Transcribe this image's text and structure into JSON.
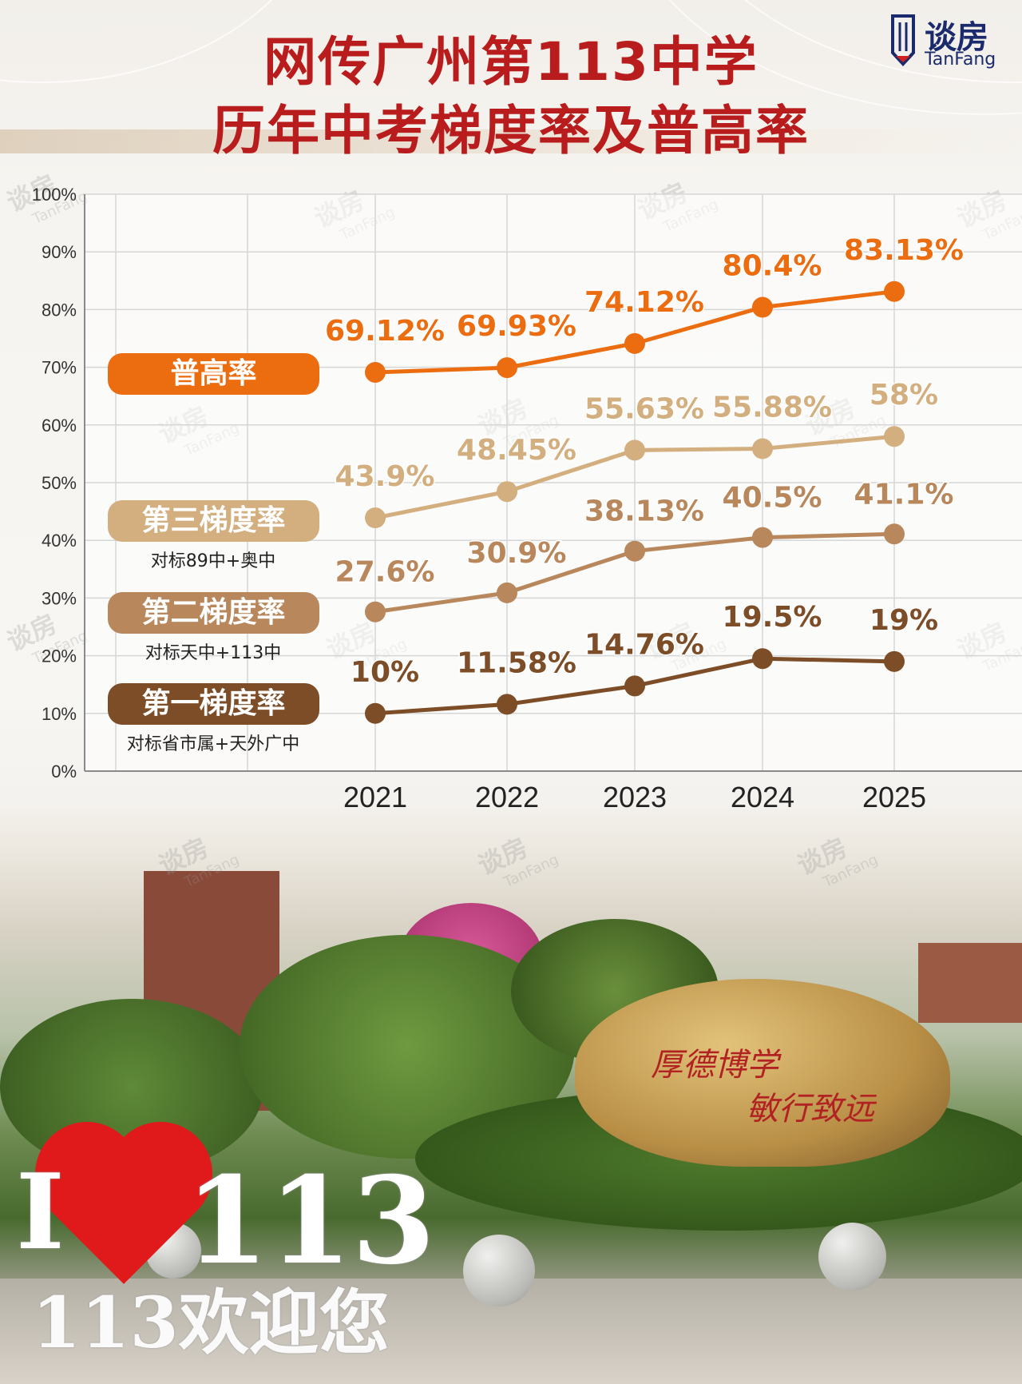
{
  "title": {
    "line1": "网传广州第113中学",
    "line2": "历年中考梯度率及普高率"
  },
  "logo": {
    "name_cn": "谈房",
    "name_en": "TanFang"
  },
  "watermark": {
    "cn": "谈房",
    "en": "TanFang"
  },
  "colors": {
    "title_red": "#b81c1c",
    "pugao": "#ec6c10",
    "tier3": "#d3ae7e",
    "tier2": "#b8875c",
    "tier1": "#7c4d26",
    "grid": "#d6d6d6"
  },
  "chart_data": {
    "type": "line",
    "categories": [
      "2021",
      "2022",
      "2023",
      "2024",
      "2025"
    ],
    "ylim": [
      0,
      100
    ],
    "y_ticks": [
      "0%",
      "10%",
      "20%",
      "30%",
      "40%",
      "50%",
      "60%",
      "70%",
      "80%",
      "90%",
      "100%"
    ],
    "grid": true,
    "series": [
      {
        "name": "普高率",
        "subtitle": "",
        "color": "#ec6c10",
        "values": [
          69.12,
          69.93,
          74.12,
          80.4,
          83.13
        ],
        "labels": [
          "69.12%",
          "69.93%",
          "74.12%",
          "80.4%",
          "83.13%"
        ]
      },
      {
        "name": "第三梯度率",
        "subtitle": "对标89中+奥中",
        "color": "#d3ae7e",
        "values": [
          43.9,
          48.45,
          55.63,
          55.88,
          58
        ],
        "labels": [
          "43.9%",
          "48.45%",
          "55.63%",
          "55.88%",
          "58%"
        ]
      },
      {
        "name": "第二梯度率",
        "subtitle": "对标天中+113中",
        "color": "#b8875c",
        "values": [
          27.6,
          30.9,
          38.13,
          40.5,
          41.1
        ],
        "labels": [
          "27.6%",
          "30.9%",
          "38.13%",
          "40.5%",
          "41.1%"
        ]
      },
      {
        "name": "第一梯度率",
        "subtitle": "对标省市属+天外广中",
        "color": "#7c4d26",
        "values": [
          10,
          11.58,
          14.76,
          19.5,
          19
        ],
        "labels": [
          "10%",
          "11.58%",
          "14.76%",
          "19.5%",
          "19%"
        ]
      }
    ]
  },
  "photo": {
    "rock_line1": "厚德博学",
    "rock_line2": "敏行致远",
    "sign_big": "113",
    "sign_small": "113欢迎您"
  }
}
